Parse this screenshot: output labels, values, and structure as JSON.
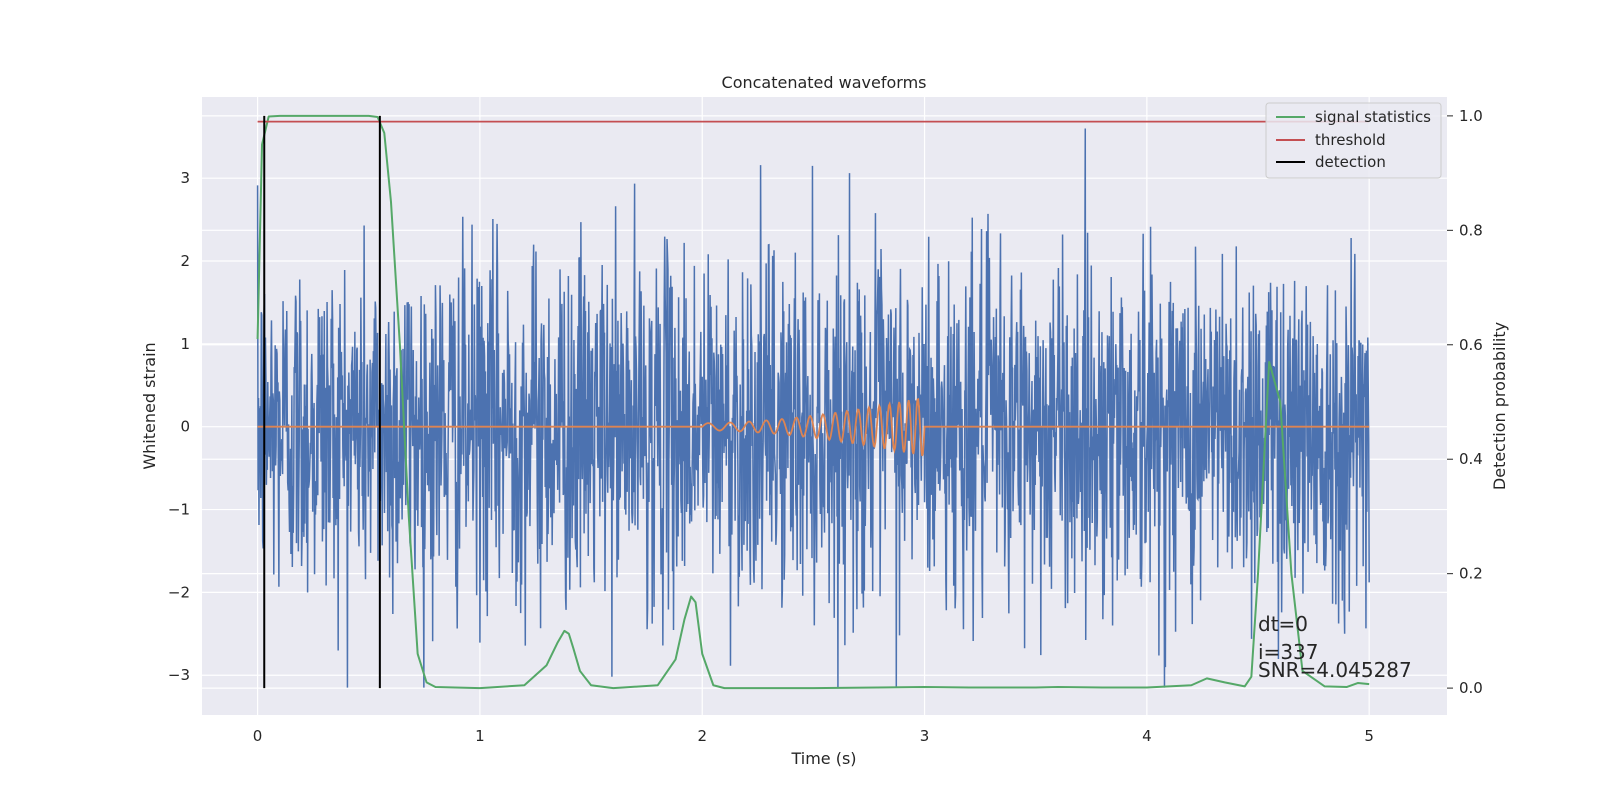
{
  "chart_data": {
    "type": "line",
    "title": "Concatenated waveforms",
    "xlabel": "Time (s)",
    "ylabel": "Whitened strain",
    "y2label": "Detection probability",
    "xlim": [
      -0.25,
      5.35
    ],
    "ylim": [
      -3.48,
      3.98
    ],
    "y2lim": [
      -0.047,
      1.033
    ],
    "x_ticks": [
      0,
      1,
      2,
      3,
      4,
      5
    ],
    "y_ticks": [
      -3,
      -2,
      -1,
      0,
      1,
      2,
      3
    ],
    "y2_ticks": [
      0.0,
      0.2,
      0.4,
      0.6,
      0.8,
      1.0
    ],
    "y2_tick_labels": [
      "0.0",
      "0.2",
      "0.4",
      "0.6",
      "0.8",
      "1.0"
    ],
    "tick_minus": "−",
    "grid": true,
    "legend_position": "top-right",
    "series": [
      {
        "name": "",
        "axis": "left",
        "color": "#4c72b0",
        "kind": "noise",
        "x_range": [
          0,
          5
        ],
        "envelope_max": 3.6,
        "envelope_min": -3.15
      },
      {
        "name": "",
        "axis": "left",
        "color": "#dd8452",
        "kind": "chirp",
        "x_range": [
          0,
          5
        ],
        "chirp_start": 2.0,
        "chirp_end": 3.0,
        "chirp_peak_amplitude": 0.36
      },
      {
        "name": "signal statistics",
        "axis": "right",
        "color": "#55a868",
        "x": [
          0,
          0.02,
          0.05,
          0.1,
          0.15,
          0.2,
          0.3,
          0.4,
          0.5,
          0.54,
          0.57,
          0.6,
          0.64,
          0.68,
          0.72,
          0.76,
          0.8,
          1.0,
          1.2,
          1.3,
          1.35,
          1.38,
          1.4,
          1.42,
          1.45,
          1.5,
          1.6,
          1.8,
          1.88,
          1.92,
          1.95,
          1.97,
          2.0,
          2.05,
          2.1,
          2.5,
          3.0,
          3.2,
          3.5,
          3.6,
          3.8,
          4.0,
          4.2,
          4.27,
          4.35,
          4.44,
          4.47,
          4.5,
          4.55,
          4.6,
          4.65,
          4.7,
          4.8,
          4.9,
          4.95,
          5.0
        ],
        "y": [
          0.61,
          0.95,
          0.999,
          1.0,
          1.0,
          1.0,
          1.0,
          1.0,
          1.0,
          0.998,
          0.97,
          0.85,
          0.6,
          0.3,
          0.06,
          0.01,
          0.002,
          0.0,
          0.005,
          0.04,
          0.08,
          0.1,
          0.095,
          0.07,
          0.03,
          0.005,
          0.0,
          0.005,
          0.05,
          0.12,
          0.16,
          0.15,
          0.06,
          0.005,
          0.0,
          0.0,
          0.002,
          0.001,
          0.001,
          0.002,
          0.001,
          0.001,
          0.005,
          0.017,
          0.01,
          0.003,
          0.02,
          0.2,
          0.57,
          0.5,
          0.2,
          0.03,
          0.003,
          0.002,
          0.009,
          0.007
        ]
      },
      {
        "name": "threshold",
        "axis": "right",
        "color": "#c44e52",
        "x": [
          0,
          5
        ],
        "y": [
          0.99,
          0.99
        ]
      },
      {
        "name": "detection",
        "axis": "right",
        "color": "#000000",
        "segments": [
          {
            "x": 0.03,
            "y": [
              0.0,
              1.0
            ]
          },
          {
            "x": 0.55,
            "y": [
              0.0,
              1.0
            ]
          }
        ]
      }
    ],
    "annotations": [
      "dt=0",
      "i=337",
      "SNR=4.045287"
    ],
    "annotation_position": [
      4.5,
      -2.5
    ]
  }
}
